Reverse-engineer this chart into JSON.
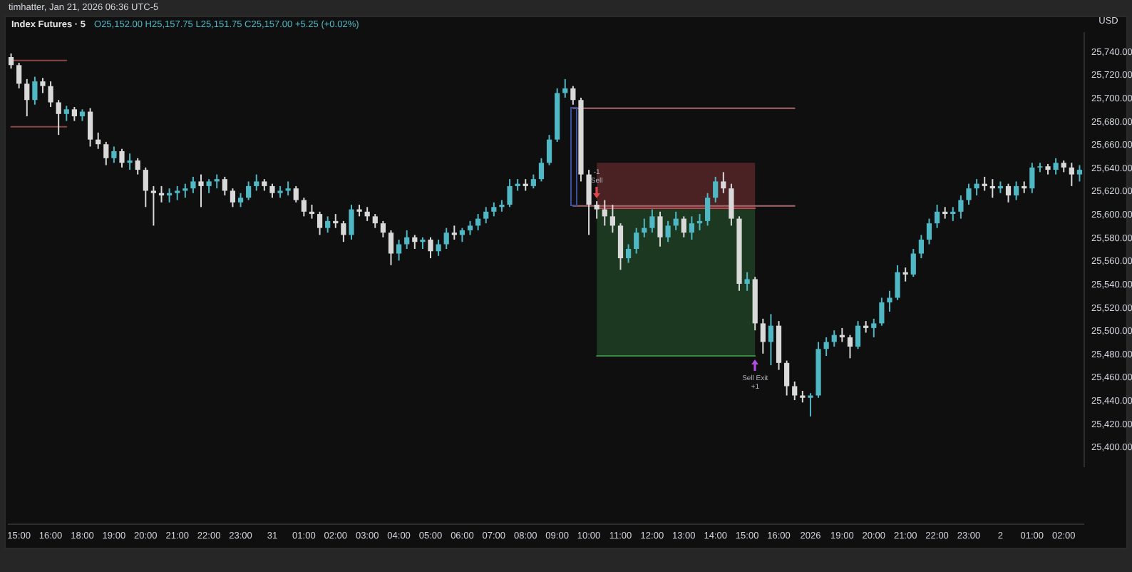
{
  "chart_data": {
    "type": "candlestick",
    "title": "Index Futures · 5",
    "subtitle": "O25,152.00 H25,157.75 L25,151.75 C25,157.00 +5.25 (+0.02%)",
    "ylabel": "USD",
    "annotations": [
      "timhatter, Jan 21, 2026 06:36 UTC-5",
      "-1",
      "Sell",
      "Sell Exit",
      "+1"
    ],
    "categories": [
      null,
      "15:00",
      null,
      null,
      null,
      "16:00",
      null,
      null,
      null,
      "18:00",
      null,
      null,
      null,
      "19:00",
      null,
      null,
      null,
      "20:00",
      null,
      null,
      null,
      "21:00",
      null,
      null,
      null,
      "22:00",
      null,
      null,
      null,
      "23:00",
      null,
      null,
      null,
      "31",
      null,
      null,
      null,
      "01:00",
      null,
      null,
      null,
      "02:00",
      null,
      null,
      null,
      "03:00",
      null,
      null,
      null,
      "04:00",
      null,
      null,
      null,
      "05:00",
      null,
      null,
      null,
      "06:00",
      null,
      null,
      null,
      "07:00",
      null,
      null,
      null,
      "08:00",
      null,
      null,
      null,
      "09:00",
      null,
      null,
      null,
      "10:00",
      null,
      null,
      null,
      "11:00",
      null,
      null,
      null,
      "12:00",
      null,
      null,
      null,
      "13:00",
      null,
      null,
      null,
      "14:00",
      null,
      null,
      null,
      "15:00",
      null,
      null,
      null,
      "16:00",
      null,
      null,
      null,
      "2026",
      null,
      null,
      null,
      "19:00",
      null,
      null,
      null,
      "20:00",
      null,
      null,
      null,
      "21:00",
      null,
      null,
      null,
      "22:00",
      null,
      null,
      null,
      "23:00",
      null,
      null,
      null,
      "2",
      null,
      null,
      null,
      "01:00",
      null,
      null,
      null,
      "02:00",
      null,
      null
    ],
    "ylim": [
      25383,
      25757
    ],
    "yticks": [
      {
        "value": 25400,
        "label": "25,400.00"
      },
      {
        "value": 25420,
        "label": "25,420.00"
      },
      {
        "value": 25440,
        "label": "25,440.00"
      },
      {
        "value": 25460,
        "label": "25,460.00"
      },
      {
        "value": 25480,
        "label": "25,480.00"
      },
      {
        "value": 25500,
        "label": "25,500.00"
      },
      {
        "value": 25520,
        "label": "25,520.00"
      },
      {
        "value": 25540,
        "label": "25,540.00"
      },
      {
        "value": 25560,
        "label": "25,560.00"
      },
      {
        "value": 25580,
        "label": "25,580.00"
      },
      {
        "value": 25600,
        "label": "25,600.00"
      },
      {
        "value": 25620,
        "label": "25,620.00"
      },
      {
        "value": 25640,
        "label": "25,640.00"
      },
      {
        "value": 25660,
        "label": "25,660.00"
      },
      {
        "value": 25680,
        "label": "25,680.00"
      },
      {
        "value": 25700,
        "label": "25,700.00"
      },
      {
        "value": 25720,
        "label": "25,720.00"
      },
      {
        "value": 25740,
        "label": "25,740.00"
      }
    ],
    "ohlc": [
      [
        25735,
        25738,
        25725,
        25728
      ],
      [
        25728,
        25730,
        25708,
        25712
      ],
      [
        25712,
        25716,
        25684,
        25698
      ],
      [
        25698,
        25718,
        25694,
        25714
      ],
      [
        25714,
        25717,
        25704,
        25710
      ],
      [
        25710,
        25714,
        25692,
        25696
      ],
      [
        25696,
        25698,
        25668,
        25686
      ],
      [
        25686,
        25693,
        25680,
        25690
      ],
      [
        25690,
        25692,
        25680,
        25684
      ],
      [
        25684,
        25690,
        25680,
        25688
      ],
      [
        25688,
        25691,
        25658,
        25664
      ],
      [
        25664,
        25670,
        25656,
        25660
      ],
      [
        25660,
        25662,
        25642,
        25648
      ],
      [
        25648,
        25658,
        25644,
        25654
      ],
      [
        25654,
        25656,
        25640,
        25644
      ],
      [
        25644,
        25652,
        25638,
        25646
      ],
      [
        25646,
        25648,
        25634,
        25638
      ],
      [
        25638,
        25640,
        25606,
        25620
      ],
      [
        25620,
        25624,
        25590,
        25618
      ],
      [
        25618,
        25624,
        25610,
        25616
      ],
      [
        25616,
        25622,
        25610,
        25618
      ],
      [
        25618,
        25624,
        25612,
        25620
      ],
      [
        25620,
        25626,
        25614,
        25622
      ],
      [
        25622,
        25632,
        25618,
        25628
      ],
      [
        25628,
        25634,
        25606,
        25624
      ],
      [
        25624,
        25630,
        25618,
        25628
      ],
      [
        25628,
        25634,
        25622,
        25630
      ],
      [
        25630,
        25632,
        25616,
        25620
      ],
      [
        25620,
        25622,
        25606,
        25610
      ],
      [
        25610,
        25618,
        25606,
        25614
      ],
      [
        25614,
        25628,
        25612,
        25624
      ],
      [
        25624,
        25634,
        25620,
        25628
      ],
      [
        25628,
        25630,
        25620,
        25624
      ],
      [
        25624,
        25626,
        25614,
        25618
      ],
      [
        25618,
        25624,
        25614,
        25620
      ],
      [
        25620,
        25628,
        25616,
        25622
      ],
      [
        25622,
        25624,
        25610,
        25612
      ],
      [
        25612,
        25614,
        25598,
        25602
      ],
      [
        25602,
        25608,
        25596,
        25600
      ],
      [
        25600,
        25602,
        25582,
        25588
      ],
      [
        25588,
        25598,
        25584,
        25594
      ],
      [
        25594,
        25600,
        25588,
        25592
      ],
      [
        25592,
        25594,
        25576,
        25582
      ],
      [
        25582,
        25608,
        25578,
        25604
      ],
      [
        25604,
        25608,
        25598,
        25602
      ],
      [
        25602,
        25606,
        25594,
        25598
      ],
      [
        25598,
        25600,
        25588,
        25592
      ],
      [
        25592,
        25594,
        25580,
        25584
      ],
      [
        25584,
        25586,
        25556,
        25566
      ],
      [
        25566,
        25578,
        25560,
        25574
      ],
      [
        25574,
        25586,
        25570,
        25580
      ],
      [
        25580,
        25582,
        25570,
        25576
      ],
      [
        25576,
        25580,
        25570,
        25578
      ],
      [
        25578,
        25580,
        25562,
        25568
      ],
      [
        25568,
        25578,
        25564,
        25574
      ],
      [
        25574,
        25588,
        25570,
        25584
      ],
      [
        25584,
        25590,
        25578,
        25582
      ],
      [
        25582,
        25588,
        25576,
        25586
      ],
      [
        25586,
        25594,
        25582,
        25590
      ],
      [
        25590,
        25600,
        25586,
        25596
      ],
      [
        25596,
        25606,
        25592,
        25602
      ],
      [
        25602,
        25610,
        25598,
        25606
      ],
      [
        25606,
        25612,
        25602,
        25608
      ],
      [
        25608,
        25630,
        25606,
        25624
      ],
      [
        25624,
        25630,
        25620,
        25626
      ],
      [
        25626,
        25630,
        25620,
        25624
      ],
      [
        25624,
        25634,
        25622,
        25630
      ],
      [
        25630,
        25648,
        25628,
        25644
      ],
      [
        25644,
        25668,
        25642,
        25664
      ],
      [
        25664,
        25708,
        25662,
        25704
      ],
      [
        25704,
        25716,
        25700,
        25708
      ],
      [
        25708,
        25710,
        25694,
        25698
      ],
      [
        25698,
        25700,
        25628,
        25634
      ],
      [
        25634,
        25638,
        25582,
        25608
      ],
      [
        25608,
        25611,
        25596,
        25604
      ],
      [
        25604,
        25612,
        25590,
        25598
      ],
      [
        25598,
        25608,
        25584,
        25590
      ],
      [
        25590,
        25592,
        25552,
        25562
      ],
      [
        25562,
        25574,
        25558,
        25570
      ],
      [
        25570,
        25588,
        25566,
        25584
      ],
      [
        25584,
        25596,
        25580,
        25588
      ],
      [
        25588,
        25604,
        25584,
        25598
      ],
      [
        25598,
        25602,
        25572,
        25580
      ],
      [
        25580,
        25594,
        25576,
        25590
      ],
      [
        25590,
        25602,
        25586,
        25596
      ],
      [
        25596,
        25598,
        25580,
        25584
      ],
      [
        25584,
        25598,
        25578,
        25592
      ],
      [
        25592,
        25600,
        25586,
        25594
      ],
      [
        25594,
        25618,
        25590,
        25614
      ],
      [
        25614,
        25632,
        25610,
        25628
      ],
      [
        25628,
        25636,
        25618,
        25622
      ],
      [
        25622,
        25626,
        25590,
        25596
      ],
      [
        25596,
        25598,
        25534,
        25540
      ],
      [
        25540,
        25550,
        25534,
        25544
      ],
      [
        25544,
        25546,
        25500,
        25506
      ],
      [
        25506,
        25510,
        25480,
        25490
      ],
      [
        25490,
        25514,
        25470,
        25504
      ],
      [
        25504,
        25508,
        25466,
        25472
      ],
      [
        25472,
        25474,
        25444,
        25452
      ],
      [
        25452,
        25456,
        25440,
        25444
      ],
      [
        25444,
        25448,
        25438,
        25442
      ],
      [
        25442,
        25446,
        25426,
        25444
      ],
      [
        25444,
        25490,
        25442,
        25484
      ],
      [
        25484,
        25494,
        25478,
        25490
      ],
      [
        25490,
        25500,
        25486,
        25496
      ],
      [
        25496,
        25502,
        25490,
        25494
      ],
      [
        25494,
        25496,
        25476,
        25486
      ],
      [
        25486,
        25508,
        25484,
        25504
      ],
      [
        25504,
        25508,
        25498,
        25502
      ],
      [
        25502,
        25510,
        25494,
        25506
      ],
      [
        25506,
        25528,
        25504,
        25524
      ],
      [
        25524,
        25534,
        25516,
        25528
      ],
      [
        25528,
        25556,
        25526,
        25550
      ],
      [
        25550,
        25554,
        25542,
        25548
      ],
      [
        25548,
        25570,
        25546,
        25566
      ],
      [
        25566,
        25582,
        25562,
        25578
      ],
      [
        25578,
        25596,
        25574,
        25592
      ],
      [
        25592,
        25608,
        25588,
        25602
      ],
      [
        25602,
        25606,
        25596,
        25600
      ],
      [
        25600,
        25606,
        25594,
        25602
      ],
      [
        25602,
        25616,
        25596,
        25612
      ],
      [
        25612,
        25626,
        25608,
        25622
      ],
      [
        25622,
        25630,
        25616,
        25626
      ],
      [
        25626,
        25632,
        25620,
        25624
      ],
      [
        25624,
        25630,
        25614,
        25622
      ],
      [
        25622,
        25628,
        25618,
        25624
      ],
      [
        25624,
        25626,
        25610,
        25616
      ],
      [
        25616,
        25628,
        25612,
        25624
      ],
      [
        25624,
        25628,
        25618,
        25622
      ],
      [
        25622,
        25644,
        25618,
        25640
      ],
      [
        25640,
        25644,
        25636,
        25641
      ],
      [
        25641,
        25643,
        25634,
        25638
      ],
      [
        25638,
        25648,
        25634,
        25644
      ],
      [
        25644,
        25646,
        25636,
        25640
      ],
      [
        25640,
        25644,
        25624,
        25634
      ],
      [
        25634,
        25642,
        25628,
        25638
      ]
    ],
    "colors": [
      "#d9d9d9",
      "#d9d9d9",
      "#d9d9d9",
      "#4fb8c4",
      "#d9d9d9",
      "#d9d9d9",
      "#d9d9d9",
      "#4fb8c4",
      "#d9d9d9",
      "#4fb8c4",
      "#d9d9d9",
      "#d9d9d9",
      "#d9d9d9",
      "#4fb8c4",
      "#d9d9d9",
      "#4fb8c4",
      "#d9d9d9",
      "#d9d9d9",
      "#d9d9d9",
      "#d9d9d9",
      "#4fb8c4",
      "#4fb8c4",
      "#4fb8c4",
      "#4fb8c4",
      "#d9d9d9",
      "#4fb8c4",
      "#4fb8c4",
      "#d9d9d9",
      "#d9d9d9",
      "#4fb8c4",
      "#4fb8c4",
      "#4fb8c4",
      "#d9d9d9",
      "#d9d9d9",
      "#4fb8c4",
      "#4fb8c4",
      "#d9d9d9",
      "#d9d9d9",
      "#d9d9d9",
      "#d9d9d9",
      "#4fb8c4",
      "#d9d9d9",
      "#d9d9d9",
      "#4fb8c4",
      "#d9d9d9",
      "#d9d9d9",
      "#d9d9d9",
      "#d9d9d9",
      "#d9d9d9",
      "#4fb8c4",
      "#4fb8c4",
      "#d9d9d9",
      "#4fb8c4",
      "#d9d9d9",
      "#4fb8c4",
      "#4fb8c4",
      "#d9d9d9",
      "#4fb8c4",
      "#4fb8c4",
      "#4fb8c4",
      "#4fb8c4",
      "#4fb8c4",
      "#4fb8c4",
      "#4fb8c4",
      "#4fb8c4",
      "#d9d9d9",
      "#4fb8c4",
      "#4fb8c4",
      "#4fb8c4",
      "#4fb8c4",
      "#4fb8c4",
      "#d9d9d9",
      "#d9d9d9",
      "#d9d9d9",
      "#d9d9d9",
      "#d9d9d9",
      "#d9d9d9",
      "#d9d9d9",
      "#4fb8c4",
      "#4fb8c4",
      "#4fb8c4",
      "#4fb8c4",
      "#d9d9d9",
      "#4fb8c4",
      "#4fb8c4",
      "#d9d9d9",
      "#4fb8c4",
      "#4fb8c4",
      "#4fb8c4",
      "#4fb8c4",
      "#d9d9d9",
      "#d9d9d9",
      "#d9d9d9",
      "#4fb8c4",
      "#d9d9d9",
      "#d9d9d9",
      "#4fb8c4",
      "#d9d9d9",
      "#d9d9d9",
      "#d9d9d9",
      "#d9d9d9",
      "#4fb8c4",
      "#4fb8c4",
      "#4fb8c4",
      "#4fb8c4",
      "#d9d9d9",
      "#d9d9d9",
      "#4fb8c4",
      "#d9d9d9",
      "#4fb8c4",
      "#4fb8c4",
      "#4fb8c4",
      "#4fb8c4",
      "#d9d9d9",
      "#4fb8c4",
      "#4fb8c4",
      "#4fb8c4",
      "#4fb8c4",
      "#d9d9d9",
      "#4fb8c4",
      "#4fb8c4",
      "#4fb8c4",
      "#4fb8c4",
      "#d9d9d9",
      "#d9d9d9",
      "#4fb8c4",
      "#d9d9d9",
      "#4fb8c4",
      "#d9d9d9",
      "#4fb8c4",
      "#4fb8c4",
      "#d9d9d9",
      "#4fb8c4",
      "#d9d9d9",
      "#d9d9d9",
      "#4fb8c4"
    ],
    "series": [
      {
        "type": "line",
        "color": "#398645",
        "values": [
          null,
          null,
          null,
          null,
          null,
          null,
          null,
          null,
          null,
          null,
          null,
          null,
          null,
          null,
          null,
          null,
          null,
          null,
          null,
          null,
          null,
          null,
          null,
          null,
          null,
          null,
          null,
          null,
          null,
          null,
          null,
          null,
          null,
          null,
          null,
          null,
          null,
          null,
          null,
          null,
          null,
          null,
          null,
          null,
          null,
          null,
          null,
          null,
          null,
          null,
          null,
          null,
          null,
          null,
          null,
          null,
          null,
          null,
          null,
          null,
          null,
          null,
          null,
          null,
          null,
          null,
          null,
          null,
          null,
          null,
          null,
          null,
          null,
          null,
          25478,
          25478,
          25478,
          25478,
          25478,
          25478,
          25478,
          25478,
          25478,
          25478,
          25478,
          25478,
          25478,
          25478,
          25478,
          25478,
          25478,
          25478,
          25478,
          25478,
          25478,
          null,
          null,
          null,
          null,
          null,
          null,
          null,
          null,
          null,
          null,
          null,
          null,
          null,
          null,
          null,
          null,
          null,
          null,
          null,
          null,
          null,
          null,
          null,
          null,
          null,
          null,
          null,
          null,
          null,
          null,
          null,
          null,
          null,
          null,
          null,
          null,
          null,
          null,
          null,
          null,
          null
        ],
        "lower": [
          null,
          null,
          null,
          null,
          null,
          null,
          null,
          null,
          null,
          null,
          null,
          null,
          null,
          null,
          null,
          null,
          null,
          null,
          null,
          null,
          null,
          null,
          null,
          null,
          null,
          null,
          null,
          null,
          null,
          null,
          null,
          null,
          null,
          null,
          null,
          null,
          null,
          null,
          null,
          null,
          null,
          null,
          null,
          null,
          null,
          null,
          null,
          null,
          null,
          null,
          null,
          null,
          null,
          null,
          null,
          null,
          null,
          null,
          null,
          null,
          null,
          null,
          null,
          null,
          null,
          null,
          null,
          null,
          null,
          null,
          null,
          null,
          null,
          null,
          25478,
          25478,
          25478,
          25478,
          25478,
          25478,
          25478,
          25478,
          25478,
          25478,
          25478,
          25478,
          25478,
          25478,
          25478,
          25478,
          25478,
          25478,
          25478,
          25478,
          25478,
          null,
          null,
          null,
          null,
          null,
          null,
          null,
          null,
          null,
          null,
          null,
          null,
          null,
          null,
          null,
          null,
          null,
          null,
          null,
          null,
          null,
          null,
          null,
          null,
          null,
          null,
          null,
          null,
          null,
          null,
          null,
          null,
          null,
          null,
          null,
          null,
          null,
          null,
          null,
          null,
          null
        ],
        "upper": [
          null,
          null,
          null,
          null,
          null,
          null,
          null,
          null,
          null,
          null,
          null,
          null,
          null,
          null,
          null,
          null,
          null,
          null,
          null,
          null,
          null,
          null,
          null,
          null,
          null,
          null,
          null,
          null,
          null,
          null,
          null,
          null,
          null,
          null,
          null,
          null,
          null,
          null,
          null,
          null,
          null,
          null,
          null,
          null,
          null,
          null,
          null,
          null,
          null,
          null,
          null,
          null,
          null,
          null,
          null,
          null,
          null,
          null,
          null,
          null,
          null,
          null,
          null,
          null,
          null,
          null,
          null,
          null,
          null,
          null,
          null,
          null,
          null,
          null,
          25605,
          25605,
          25605,
          25605,
          25605,
          25605,
          25605,
          25605,
          25605,
          25605,
          25605,
          25605,
          25605,
          25605,
          25605,
          25605,
          25605,
          25605,
          25605,
          25605,
          25605,
          null,
          null,
          null,
          null,
          null,
          null,
          null,
          null,
          null,
          null,
          null,
          null,
          null,
          null,
          null,
          null,
          null,
          null,
          null,
          null,
          null,
          null,
          null,
          null,
          null,
          null,
          null,
          null,
          null,
          null,
          null,
          null,
          null,
          null,
          null,
          null,
          null,
          null,
          null,
          null,
          null
        ]
      },
      {
        "type": "line",
        "color": "#bc474d",
        "values": [
          null,
          null,
          null,
          null,
          null,
          null,
          null,
          null,
          null,
          null,
          null,
          null,
          null,
          null,
          null,
          null,
          null,
          null,
          null,
          null,
          null,
          null,
          null,
          null,
          null,
          null,
          null,
          null,
          null,
          null,
          null,
          null,
          null,
          null,
          null,
          null,
          null,
          null,
          null,
          null,
          null,
          null,
          null,
          null,
          null,
          null,
          null,
          null,
          null,
          null,
          null,
          null,
          null,
          null,
          null,
          null,
          null,
          null,
          null,
          null,
          null,
          null,
          null,
          null,
          null,
          null,
          null,
          null,
          null,
          null,
          null,
          null,
          null,
          null,
          25605,
          25605,
          25605,
          25605,
          25605,
          25605,
          25605,
          25605,
          25605,
          25605,
          25605,
          25605,
          25605,
          25605,
          25605,
          25605,
          25605,
          25605,
          25605,
          25605,
          25605,
          null,
          null,
          null,
          null,
          null,
          null,
          null,
          null,
          null,
          null,
          null,
          null,
          null,
          null,
          null,
          null,
          null,
          null,
          null,
          null,
          null,
          null,
          null,
          null,
          null,
          null,
          null,
          null,
          null,
          null,
          null,
          null,
          null,
          null,
          null,
          null,
          null,
          null,
          null,
          null,
          null
        ],
        "lower": [
          null,
          null,
          null,
          null,
          null,
          null,
          null,
          null,
          null,
          null,
          null,
          null,
          null,
          null,
          null,
          null,
          null,
          null,
          null,
          null,
          null,
          null,
          null,
          null,
          null,
          null,
          null,
          null,
          null,
          null,
          null,
          null,
          null,
          null,
          null,
          null,
          null,
          null,
          null,
          null,
          null,
          null,
          null,
          null,
          null,
          null,
          null,
          null,
          null,
          null,
          null,
          null,
          null,
          null,
          null,
          null,
          null,
          null,
          null,
          null,
          null,
          null,
          null,
          null,
          null,
          null,
          null,
          null,
          null,
          null,
          null,
          null,
          null,
          null,
          25605,
          25605,
          25605,
          25605,
          25605,
          25605,
          25605,
          25605,
          25605,
          25605,
          25605,
          25605,
          25605,
          25605,
          25605,
          25605,
          25605,
          25605,
          25605,
          25605,
          25605,
          null,
          null,
          null,
          null,
          null,
          null,
          null,
          null,
          null,
          null,
          null,
          null,
          null,
          null,
          null,
          null,
          null,
          null,
          null,
          null,
          null,
          null,
          null,
          null,
          null,
          null,
          null,
          null,
          null,
          null,
          null,
          null,
          null,
          null,
          null,
          null,
          null,
          null,
          null,
          null,
          null
        ],
        "upper": [
          null,
          null,
          null,
          null,
          null,
          null,
          null,
          null,
          null,
          null,
          null,
          null,
          null,
          null,
          null,
          null,
          null,
          null,
          null,
          null,
          null,
          null,
          null,
          null,
          null,
          null,
          null,
          null,
          null,
          null,
          null,
          null,
          null,
          null,
          null,
          null,
          null,
          null,
          null,
          null,
          null,
          null,
          null,
          null,
          null,
          null,
          null,
          null,
          null,
          null,
          null,
          null,
          null,
          null,
          null,
          null,
          null,
          null,
          null,
          null,
          null,
          null,
          null,
          null,
          null,
          null,
          null,
          null,
          null,
          null,
          null,
          null,
          null,
          null,
          25644,
          25644,
          25644,
          25644,
          25644,
          25644,
          25644,
          25644,
          25644,
          25644,
          25644,
          25644,
          25644,
          25644,
          25644,
          25644,
          25644,
          25644,
          25644,
          25644,
          25644,
          null,
          null,
          null,
          null,
          null,
          null,
          null,
          null,
          null,
          null,
          null,
          null,
          null,
          null,
          null,
          null,
          null,
          null,
          null,
          null,
          null,
          null,
          null,
          null,
          null,
          null,
          null,
          null,
          null,
          null,
          null,
          null,
          null,
          null,
          null,
          null,
          null,
          null,
          null,
          null,
          null
        ]
      },
      {
        "type": "line",
        "color": "#8a4444",
        "values": [
          25732,
          25732,
          25732,
          25732,
          25732,
          25732,
          25732,
          25732,
          null,
          null,
          null,
          null,
          null,
          null,
          null,
          null,
          null,
          null,
          null,
          null,
          null,
          null,
          null,
          null,
          null,
          null,
          null,
          null,
          null,
          null,
          null,
          null,
          null,
          null,
          null,
          null,
          null,
          null,
          null,
          null,
          null,
          null,
          null,
          null,
          null,
          null,
          null,
          null,
          null,
          null,
          null,
          null,
          null,
          null,
          null,
          null,
          null,
          null,
          null,
          null,
          null,
          null,
          null,
          null,
          null,
          null,
          null,
          null,
          null,
          null,
          null,
          null,
          null,
          null,
          null,
          null,
          null,
          null,
          null,
          null,
          null,
          null,
          null,
          null,
          null,
          null,
          null,
          null,
          null,
          null,
          null,
          null,
          null,
          null,
          null,
          null,
          null,
          null,
          null,
          null,
          null,
          null,
          null,
          null,
          null,
          null,
          null,
          null,
          null,
          null,
          null,
          null,
          null,
          null,
          null,
          null,
          null,
          null,
          null,
          null,
          null,
          null,
          null,
          null,
          null,
          null,
          null,
          null,
          null,
          null,
          null,
          null,
          null,
          null,
          null,
          null
        ]
      },
      {
        "type": "line",
        "color": "#8a4444",
        "values": [
          25675,
          25675,
          25675,
          25675,
          25675,
          25675,
          25675,
          25675,
          null,
          null,
          null,
          null,
          null,
          null,
          null,
          null,
          null,
          null,
          null,
          null,
          null,
          null,
          null,
          null,
          null,
          null,
          null,
          null,
          null,
          null,
          null,
          null,
          null,
          null,
          null,
          null,
          null,
          null,
          null,
          null,
          null,
          null,
          null,
          null,
          null,
          null,
          null,
          null,
          null,
          null,
          null,
          null,
          null,
          null,
          null,
          null,
          null,
          null,
          null,
          null,
          null,
          null,
          null,
          null,
          null,
          null,
          null,
          null,
          null,
          null,
          null,
          null,
          null,
          null,
          null,
          null,
          null,
          null,
          null,
          null,
          null,
          null,
          null,
          null,
          null,
          null,
          null,
          null,
          null,
          null,
          null,
          null,
          null,
          null,
          null,
          null,
          null,
          null,
          null,
          null,
          null,
          null,
          null,
          null,
          null,
          null,
          null,
          null,
          null,
          null,
          null,
          null,
          null,
          null,
          null,
          null,
          null,
          null,
          null,
          null,
          null,
          null,
          null,
          null,
          null,
          null,
          null,
          null,
          null,
          null,
          null,
          null,
          null,
          null,
          null,
          null
        ]
      },
      {
        "type": "line",
        "color": "#a86a6c",
        "values": [
          null,
          null,
          null,
          null,
          null,
          null,
          null,
          null,
          null,
          null,
          null,
          null,
          null,
          null,
          null,
          null,
          null,
          null,
          null,
          null,
          null,
          null,
          null,
          null,
          null,
          null,
          null,
          null,
          null,
          null,
          null,
          null,
          null,
          null,
          null,
          null,
          null,
          null,
          null,
          null,
          null,
          null,
          null,
          null,
          null,
          null,
          null,
          null,
          null,
          null,
          null,
          null,
          null,
          null,
          null,
          null,
          null,
          null,
          null,
          null,
          null,
          null,
          null,
          null,
          null,
          null,
          null,
          null,
          null,
          null,
          null,
          25691,
          25691,
          25691,
          25691,
          25691,
          25691,
          25691,
          25691,
          25691,
          25691,
          25691,
          25691,
          25691,
          25691,
          25691,
          25691,
          25691,
          25691,
          25691,
          25691,
          25691,
          25691,
          25691,
          25691,
          25691,
          25691,
          25691,
          25691,
          25691,
          null,
          null,
          null,
          null,
          null,
          null,
          null,
          null,
          null,
          null,
          null,
          null,
          null,
          null,
          null,
          null,
          null,
          null,
          null,
          null,
          null,
          null,
          null,
          null,
          null,
          null,
          null,
          null,
          null,
          null,
          null,
          null,
          null,
          null,
          null,
          null
        ]
      },
      {
        "type": "line",
        "color": "#a86a6c",
        "values": [
          null,
          null,
          null,
          null,
          null,
          null,
          null,
          null,
          null,
          null,
          null,
          null,
          null,
          null,
          null,
          null,
          null,
          null,
          null,
          null,
          null,
          null,
          null,
          null,
          null,
          null,
          null,
          null,
          null,
          null,
          null,
          null,
          null,
          null,
          null,
          null,
          null,
          null,
          null,
          null,
          null,
          null,
          null,
          null,
          null,
          null,
          null,
          null,
          null,
          null,
          null,
          null,
          null,
          null,
          null,
          null,
          null,
          null,
          null,
          null,
          null,
          null,
          null,
          null,
          null,
          null,
          null,
          null,
          null,
          null,
          null,
          25607,
          25607,
          25607,
          25607,
          25607,
          25607,
          25607,
          25607,
          25607,
          25607,
          25607,
          25607,
          25607,
          25607,
          25607,
          25607,
          25607,
          25607,
          25607,
          25607,
          25607,
          25607,
          25607,
          25607,
          25607,
          25607,
          25607,
          25607,
          25607,
          null,
          null,
          null,
          null,
          null,
          null,
          null,
          null,
          null,
          null,
          null,
          null,
          null,
          null,
          null,
          null,
          null,
          null,
          null,
          null,
          null,
          null,
          null,
          null,
          null,
          null,
          null,
          null,
          null,
          null,
          null,
          null,
          null,
          null,
          null,
          null
        ]
      }
    ]
  }
}
